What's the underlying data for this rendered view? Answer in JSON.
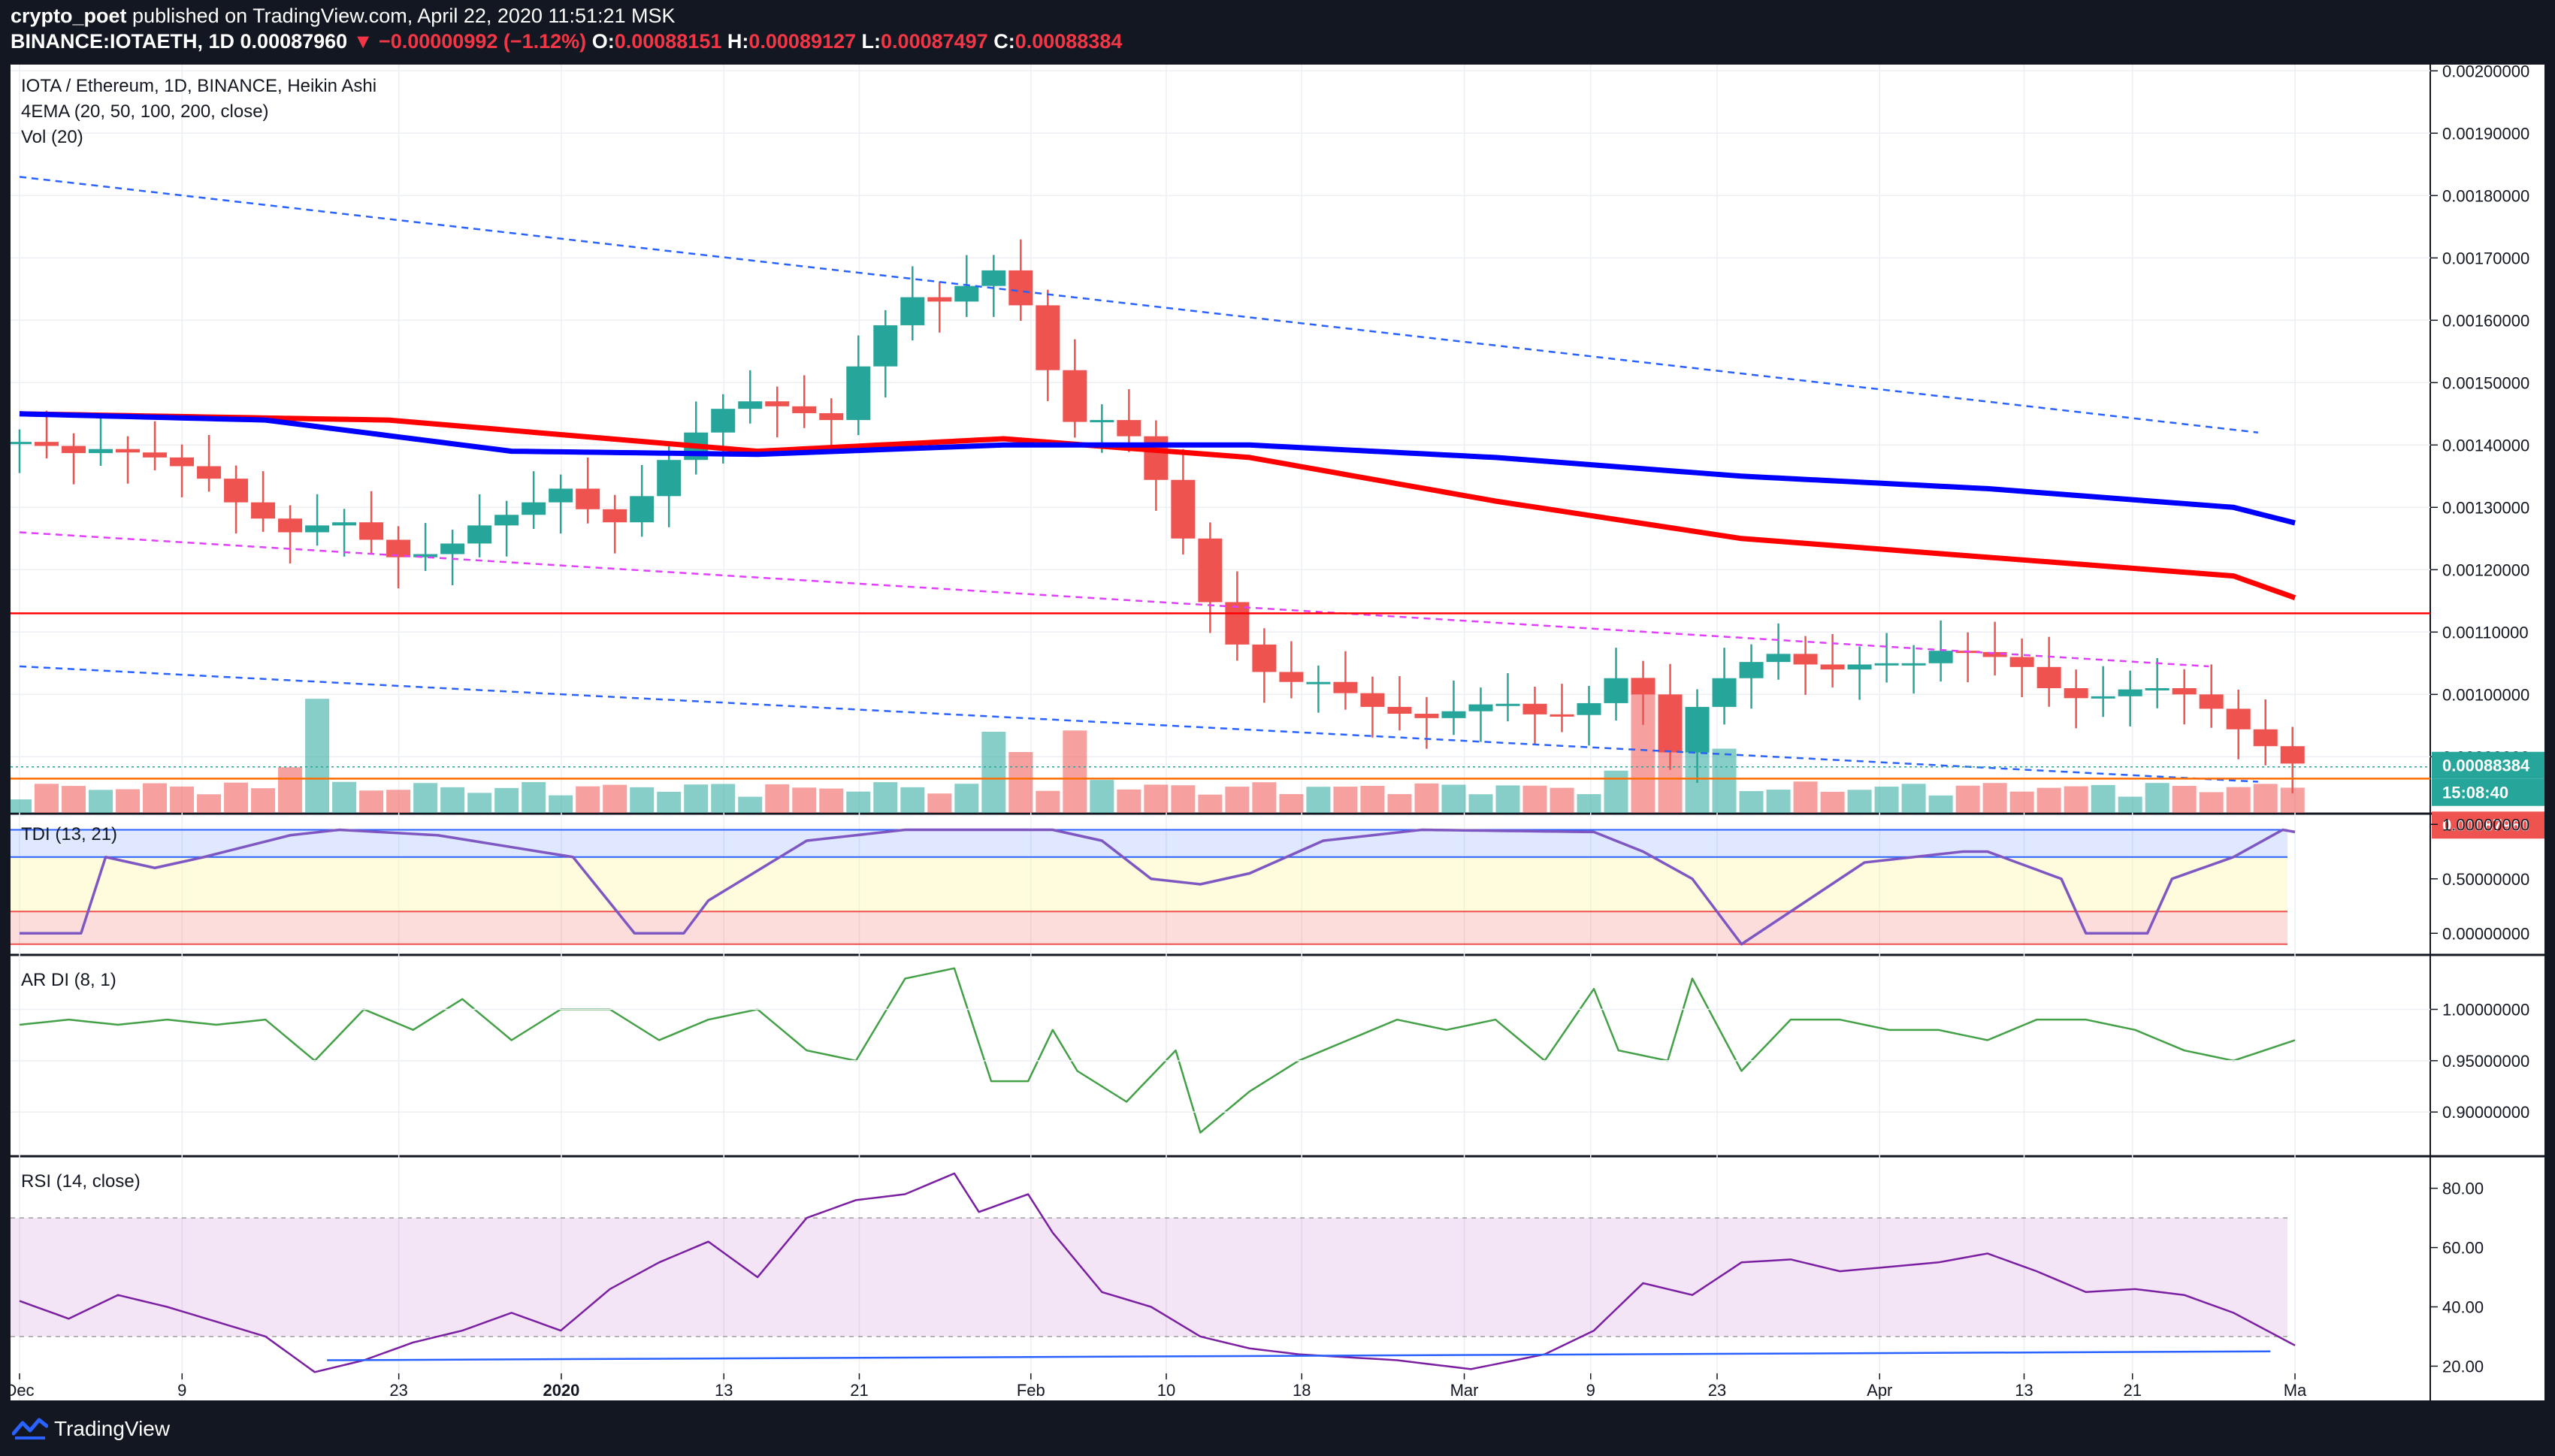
{
  "header": {
    "publisher": "crypto_poet",
    "published_text": "published on TradingView.com, April 22, 2020 11:51:21 MSK",
    "symbol": "BINANCE:IOTAETH, 1D",
    "last_price": "0.00087960",
    "change": "−0.00000992 (−1.12%)",
    "open_label": "O:",
    "open": "0.00088151",
    "high_label": "H:",
    "high": "0.00089127",
    "low_label": "L:",
    "low": "0.00087497",
    "close_label": "C:",
    "close": "0.00088384"
  },
  "legend": {
    "line1": "IOTA / Ethereum, 1D, BINANCE, Heikin Ashi",
    "line2": "4EMA (20, 50, 100, 200, close)",
    "line3": "Vol (20)"
  },
  "footer": {
    "brand": "TradingView"
  },
  "colors": {
    "up": "#26a69a",
    "down": "#ef5350",
    "ema_blue": "#0000ff",
    "ema_red": "#ff0000",
    "background": "#ffffff",
    "frame": "#131722"
  },
  "chart_data": [
    {
      "type": "candlestick",
      "pane": "price",
      "title": "IOTA / Ethereum, 1D, BINANCE, Heikin Ashi",
      "x_ticks": [
        "Dec",
        "9",
        "23",
        "2020",
        "13",
        "21",
        "Feb",
        "10",
        "18",
        "Mar",
        "9",
        "23",
        "Apr",
        "13",
        "21",
        "Ma"
      ],
      "y_ticks": [
        "0.00200000",
        "0.00190000",
        "0.00180000",
        "0.00170000",
        "0.00160000",
        "0.00150000",
        "0.00140000",
        "0.00130000",
        "0.00120000",
        "0.00110000",
        "0.00100000",
        "0.00090000"
      ],
      "ylim": [
        0.00081,
        0.00201
      ],
      "price_labels": {
        "close": "0.00088384",
        "countdown": "15:08:40",
        "last": "0.00087960"
      },
      "close_path": [
        [
          0,
          0.001405
        ],
        [
          10,
          0.0014
        ],
        [
          20,
          0.001385
        ],
        [
          30,
          0.001395
        ],
        [
          40,
          0.00139
        ],
        [
          50,
          0.001385
        ],
        [
          60,
          0.001375
        ],
        [
          70,
          0.00136
        ],
        [
          80,
          0.00134
        ],
        [
          90,
          0.0013
        ],
        [
          100,
          0.00128
        ],
        [
          110,
          0.00126
        ],
        [
          120,
          0.00127
        ],
        [
          130,
          0.00128
        ],
        [
          140,
          0.00126
        ],
        [
          150,
          0.00122
        ],
        [
          160,
          0.00122
        ],
        [
          170,
          0.00123
        ],
        [
          180,
          0.00125
        ],
        [
          190,
          0.00128
        ],
        [
          200,
          0.00129
        ],
        [
          210,
          0.00131
        ],
        [
          220,
          0.00133
        ],
        [
          240,
          0.00127
        ],
        [
          250,
          0.0013
        ],
        [
          260,
          0.00136
        ],
        [
          270,
          0.0014
        ],
        [
          280,
          0.00144
        ],
        [
          290,
          0.00147
        ],
        [
          300,
          0.00147
        ],
        [
          310,
          0.00146
        ],
        [
          320,
          0.00145
        ],
        [
          330,
          0.00144
        ],
        [
          335,
          0.00146
        ],
        [
          340,
          0.00152
        ],
        [
          350,
          0.00158
        ],
        [
          360,
          0.00164
        ],
        [
          370,
          0.00163
        ],
        [
          380,
          0.00163
        ],
        [
          390,
          0.00168
        ],
        [
          400,
          0.00168
        ],
        [
          410,
          0.0016
        ],
        [
          420,
          0.0015
        ],
        [
          430,
          0.00143
        ],
        [
          440,
          0.00144
        ],
        [
          450,
          0.00142
        ],
        [
          460,
          0.00136
        ],
        [
          470,
          0.00128
        ],
        [
          480,
          0.00118
        ],
        [
          490,
          0.0011
        ],
        [
          500,
          0.00106
        ],
        [
          510,
          0.00102
        ],
        [
          520,
          0.00102
        ],
        [
          530,
          0.00102
        ],
        [
          540,
          0.001
        ],
        [
          550,
          0.00098
        ],
        [
          560,
          0.00097
        ],
        [
          570,
          0.00096
        ],
        [
          580,
          0.00097
        ],
        [
          590,
          0.00098
        ],
        [
          600,
          0.00099
        ],
        [
          610,
          0.00098
        ],
        [
          620,
          0.00096
        ],
        [
          630,
          0.00097
        ],
        [
          640,
          0.00099
        ],
        [
          650,
          0.00103
        ],
        [
          660,
          0.001
        ],
        [
          670,
          0.0009
        ],
        [
          680,
          0.00097
        ],
        [
          690,
          0.00102
        ],
        [
          700,
          0.00104
        ],
        [
          710,
          0.00107
        ],
        [
          720,
          0.00106
        ],
        [
          730,
          0.00104
        ],
        [
          740,
          0.00104
        ],
        [
          750,
          0.00105
        ],
        [
          760,
          0.00105
        ],
        [
          770,
          0.00105
        ],
        [
          780,
          0.00107
        ],
        [
          790,
          0.00107
        ],
        [
          800,
          0.00106
        ],
        [
          810,
          0.00106
        ],
        [
          820,
          0.00102
        ],
        [
          830,
          0.001
        ],
        [
          840,
          0.00099
        ],
        [
          850,
          0.001
        ],
        [
          860,
          0.00101
        ],
        [
          870,
          0.00101
        ],
        [
          880,
          0.001
        ],
        [
          890,
          0.00098
        ],
        [
          900,
          0.00095
        ],
        [
          910,
          0.00092
        ],
        [
          920,
          0.00091
        ],
        [
          925,
          0.00088384
        ]
      ],
      "ema_red": [
        [
          0,
          0.00145
        ],
        [
          150,
          0.00144
        ],
        [
          300,
          0.00139
        ],
        [
          400,
          0.00141
        ],
        [
          500,
          0.00138
        ],
        [
          600,
          0.00131
        ],
        [
          700,
          0.00125
        ],
        [
          800,
          0.00122
        ],
        [
          900,
          0.00119
        ],
        [
          925,
          0.001155
        ]
      ],
      "ema_blue": [
        [
          0,
          0.00145
        ],
        [
          100,
          0.00144
        ],
        [
          200,
          0.00139
        ],
        [
          300,
          0.001385
        ],
        [
          400,
          0.0014
        ],
        [
          500,
          0.0014
        ],
        [
          600,
          0.00138
        ],
        [
          700,
          0.00135
        ],
        [
          800,
          0.00133
        ],
        [
          900,
          0.0013
        ],
        [
          925,
          0.001275
        ]
      ],
      "trendlines": [
        {
          "color": "#2962ff",
          "style": "dashed",
          "from": [
            0,
            0.00183
          ],
          "to": [
            910,
            0.00142
          ]
        },
        {
          "color": "#2962ff",
          "style": "dashed",
          "from": [
            0,
            0.001045
          ],
          "to": [
            910,
            0.00086
          ]
        },
        {
          "color": "#e040fb",
          "style": "dashed",
          "from": [
            0,
            0.00126
          ],
          "to": [
            890,
            0.001045
          ]
        }
      ],
      "hlines": [
        {
          "color": "#ff0000",
          "value": 0.00113
        },
        {
          "color": "#ff6d00",
          "value": 0.000865
        }
      ]
    },
    {
      "type": "bar",
      "pane": "price",
      "title": "Vol (20)",
      "peaks": [
        [
          120,
          0.9
        ],
        [
          400,
          0.8
        ],
        [
          430,
          0.65
        ],
        [
          660,
          1.0
        ],
        [
          670,
          0.75
        ],
        [
          685,
          0.95
        ]
      ]
    },
    {
      "type": "line",
      "pane": "indicator",
      "title": "TDI (13, 21)",
      "y_ticks": [
        "1.00000000",
        "0.50000000",
        "0.00000000"
      ],
      "ylim": [
        -0.15,
        1.05
      ],
      "bands": [
        0.95,
        0.7,
        0.2,
        -0.1
      ],
      "points": [
        [
          0,
          0
        ],
        [
          25,
          0
        ],
        [
          35,
          0.7
        ],
        [
          55,
          0.6
        ],
        [
          75,
          0.7
        ],
        [
          110,
          0.9
        ],
        [
          130,
          0.95
        ],
        [
          170,
          0.9
        ],
        [
          225,
          0.7
        ],
        [
          250,
          0
        ],
        [
          270,
          0
        ],
        [
          280,
          0.3
        ],
        [
          320,
          0.85
        ],
        [
          360,
          0.95
        ],
        [
          420,
          0.95
        ],
        [
          440,
          0.85
        ],
        [
          460,
          0.5
        ],
        [
          480,
          0.45
        ],
        [
          500,
          0.55
        ],
        [
          530,
          0.85
        ],
        [
          570,
          0.95
        ],
        [
          640,
          0.93
        ],
        [
          660,
          0.75
        ],
        [
          680,
          0.5
        ],
        [
          690,
          0.2
        ],
        [
          700,
          -0.1
        ],
        [
          720,
          0.2
        ],
        [
          750,
          0.65
        ],
        [
          790,
          0.75
        ],
        [
          800,
          0.75
        ],
        [
          830,
          0.5
        ],
        [
          840,
          0
        ],
        [
          865,
          0
        ],
        [
          875,
          0.5
        ],
        [
          900,
          0.7
        ],
        [
          920,
          0.95
        ],
        [
          925,
          0.93
        ]
      ]
    },
    {
      "type": "line",
      "pane": "indicator",
      "title": "AR DI (8, 1)",
      "y_ticks": [
        "1.00000000",
        "0.95000000",
        "0.90000000"
      ],
      "ylim": [
        0.865,
        1.045
      ],
      "points": [
        [
          0,
          0.985
        ],
        [
          20,
          0.99
        ],
        [
          40,
          0.985
        ],
        [
          60,
          0.99
        ],
        [
          80,
          0.985
        ],
        [
          100,
          0.99
        ],
        [
          120,
          0.95
        ],
        [
          140,
          1.0
        ],
        [
          160,
          0.98
        ],
        [
          180,
          1.01
        ],
        [
          200,
          0.97
        ],
        [
          220,
          1.0
        ],
        [
          240,
          1.0
        ],
        [
          260,
          0.97
        ],
        [
          280,
          0.99
        ],
        [
          300,
          1.0
        ],
        [
          320,
          0.96
        ],
        [
          340,
          0.95
        ],
        [
          360,
          1.03
        ],
        [
          380,
          1.04
        ],
        [
          395,
          0.93
        ],
        [
          410,
          0.93
        ],
        [
          420,
          0.98
        ],
        [
          430,
          0.94
        ],
        [
          450,
          0.91
        ],
        [
          470,
          0.96
        ],
        [
          480,
          0.88
        ],
        [
          500,
          0.92
        ],
        [
          520,
          0.95
        ],
        [
          540,
          0.97
        ],
        [
          560,
          0.99
        ],
        [
          580,
          0.98
        ],
        [
          600,
          0.99
        ],
        [
          620,
          0.95
        ],
        [
          640,
          1.02
        ],
        [
          650,
          0.96
        ],
        [
          670,
          0.95
        ],
        [
          680,
          1.03
        ],
        [
          700,
          0.94
        ],
        [
          720,
          0.99
        ],
        [
          740,
          0.99
        ],
        [
          760,
          0.98
        ],
        [
          780,
          0.98
        ],
        [
          800,
          0.97
        ],
        [
          820,
          0.99
        ],
        [
          840,
          0.99
        ],
        [
          860,
          0.98
        ],
        [
          880,
          0.96
        ],
        [
          900,
          0.95
        ],
        [
          925,
          0.97
        ]
      ]
    },
    {
      "type": "line",
      "pane": "indicator",
      "title": "RSI (14, close)",
      "y_ticks": [
        "80.00",
        "60.00",
        "40.00",
        "20.00"
      ],
      "ylim": [
        12,
        87
      ],
      "band": [
        30,
        70
      ],
      "points": [
        [
          0,
          42
        ],
        [
          20,
          36
        ],
        [
          40,
          44
        ],
        [
          60,
          40
        ],
        [
          80,
          35
        ],
        [
          100,
          30
        ],
        [
          120,
          18
        ],
        [
          140,
          22
        ],
        [
          160,
          28
        ],
        [
          180,
          32
        ],
        [
          200,
          38
        ],
        [
          220,
          32
        ],
        [
          240,
          46
        ],
        [
          260,
          55
        ],
        [
          280,
          62
        ],
        [
          300,
          50
        ],
        [
          320,
          70
        ],
        [
          340,
          76
        ],
        [
          360,
          78
        ],
        [
          380,
          85
        ],
        [
          390,
          72
        ],
        [
          410,
          78
        ],
        [
          420,
          65
        ],
        [
          440,
          45
        ],
        [
          460,
          40
        ],
        [
          480,
          30
        ],
        [
          500,
          26
        ],
        [
          520,
          24
        ],
        [
          560,
          22
        ],
        [
          590,
          19
        ],
        [
          620,
          24
        ],
        [
          640,
          32
        ],
        [
          660,
          48
        ],
        [
          680,
          44
        ],
        [
          700,
          55
        ],
        [
          720,
          56
        ],
        [
          740,
          52
        ],
        [
          780,
          55
        ],
        [
          800,
          58
        ],
        [
          820,
          52
        ],
        [
          840,
          45
        ],
        [
          860,
          46
        ],
        [
          880,
          44
        ],
        [
          900,
          38
        ],
        [
          925,
          27
        ]
      ]
    }
  ]
}
